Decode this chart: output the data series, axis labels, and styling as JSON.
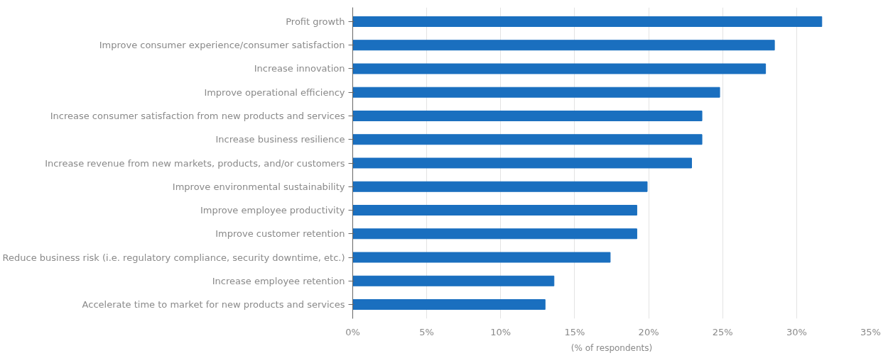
{
  "chart_data": {
    "type": "bar",
    "orientation": "horizontal",
    "xlabel": "(% of respondents)",
    "categories": [
      "Profit growth",
      "Improve consumer experience/consumer satisfaction",
      "Increase innovation",
      "Improve operational efficiency",
      "Increase consumer satisfaction from new products and services",
      "Increase business resilience",
      "Increase revenue from new markets, products, and/or customers",
      "Improve environmental sustainability",
      "Improve employee productivity",
      "Improve customer retention",
      "Reduce business risk (i.e. regulatory compliance, security downtime, etc.)",
      "Increase employee retention",
      "Accelerate time to market for new products and services"
    ],
    "values": [
      31.7,
      28.5,
      27.9,
      24.8,
      23.6,
      23.6,
      22.9,
      19.9,
      19.2,
      19.2,
      17.4,
      13.6,
      13.0
    ],
    "color": "#1a6fbf",
    "xlim": [
      0,
      35
    ],
    "xticks": [
      {
        "value": 0,
        "label": "0%"
      },
      {
        "value": 5,
        "label": "5%"
      },
      {
        "value": 10,
        "label": "10%"
      },
      {
        "value": 15,
        "label": "15%"
      },
      {
        "value": 20,
        "label": "20%"
      },
      {
        "value": 25,
        "label": "25%"
      },
      {
        "value": 30,
        "label": "30%"
      },
      {
        "value": 35,
        "label": "35%"
      }
    ],
    "grid": "x"
  }
}
